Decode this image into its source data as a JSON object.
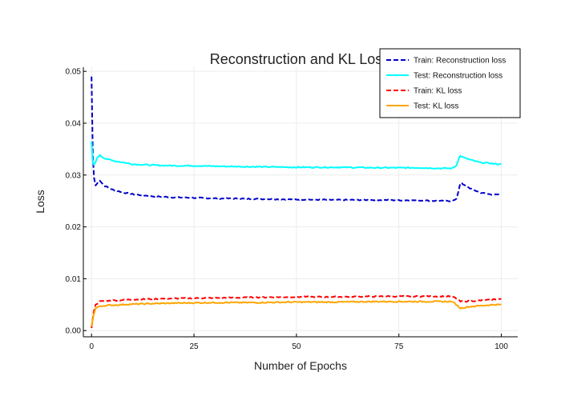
{
  "chart_data": {
    "type": "line",
    "title": "Reconstruction and KL Loss",
    "xlabel": "Number of Epochs",
    "ylabel": "Loss",
    "xlim": [
      -2,
      104
    ],
    "ylim": [
      -0.0012,
      0.0508
    ],
    "xticks": [
      0,
      25,
      50,
      75,
      100
    ],
    "xtick_labels": [
      "0",
      "25",
      "50",
      "75",
      "100"
    ],
    "yticks": [
      0,
      0.01,
      0.02,
      0.03,
      0.04,
      0.05
    ],
    "ytick_labels": [
      "0.00",
      "0.01",
      "0.02",
      "0.03",
      "0.04",
      "0.05"
    ],
    "grid": true,
    "legend_position": "top-right",
    "series": [
      {
        "name": "Train: Reconstruction loss",
        "color": "#0000cc",
        "dash": "dash",
        "x": [
          0,
          0.3,
          0.6,
          1,
          2,
          3,
          5,
          8,
          10,
          15,
          20,
          25,
          30,
          40,
          50,
          60,
          70,
          80,
          85,
          88,
          89,
          89.5,
          90,
          91,
          93,
          95,
          97,
          99,
          100
        ],
        "y": [
          0.049,
          0.034,
          0.0295,
          0.028,
          0.029,
          0.028,
          0.0272,
          0.0266,
          0.0263,
          0.0259,
          0.0257,
          0.0256,
          0.0255,
          0.0254,
          0.0253,
          0.0252,
          0.0252,
          0.0251,
          0.025,
          0.025,
          0.0253,
          0.0268,
          0.0285,
          0.028,
          0.0272,
          0.0266,
          0.0263,
          0.0262,
          0.0261
        ]
      },
      {
        "name": "Test: Reconstruction loss",
        "color": "#00ffff",
        "dash": "solid",
        "x": [
          0,
          0.3,
          0.6,
          1,
          1.5,
          2,
          3,
          5,
          8,
          10,
          15,
          20,
          25,
          30,
          40,
          50,
          60,
          70,
          80,
          85,
          88,
          89,
          89.5,
          90,
          91,
          93,
          95,
          97,
          99,
          100
        ],
        "y": [
          0.0365,
          0.0325,
          0.032,
          0.0325,
          0.0335,
          0.0338,
          0.0333,
          0.0328,
          0.0324,
          0.0321,
          0.0319,
          0.0318,
          0.0318,
          0.0317,
          0.0316,
          0.0315,
          0.0315,
          0.0314,
          0.0314,
          0.0313,
          0.0313,
          0.0318,
          0.033,
          0.0337,
          0.0333,
          0.0328,
          0.0324,
          0.0323,
          0.0321,
          0.0321
        ]
      },
      {
        "name": "Train: KL loss",
        "color": "#ff0000",
        "dash": "dash",
        "x": [
          0,
          0.5,
          1,
          2,
          3,
          5,
          10,
          20,
          30,
          40,
          50,
          60,
          70,
          80,
          85,
          88,
          89,
          90,
          92,
          95,
          98,
          100
        ],
        "y": [
          0.0005,
          0.0035,
          0.005,
          0.0056,
          0.0057,
          0.0058,
          0.006,
          0.0062,
          0.0063,
          0.0064,
          0.0065,
          0.0065,
          0.0066,
          0.0066,
          0.0066,
          0.0066,
          0.0062,
          0.0056,
          0.0057,
          0.0058,
          0.006,
          0.0061
        ]
      },
      {
        "name": "Test: KL loss",
        "color": "#ffa500",
        "dash": "solid",
        "x": [
          0,
          0.5,
          1,
          2,
          3,
          5,
          10,
          20,
          30,
          40,
          50,
          60,
          70,
          80,
          85,
          88,
          89,
          90,
          92,
          95,
          98,
          100
        ],
        "y": [
          0.0008,
          0.003,
          0.0043,
          0.0047,
          0.0048,
          0.0049,
          0.0051,
          0.0053,
          0.0054,
          0.0054,
          0.0055,
          0.0055,
          0.0056,
          0.0056,
          0.0056,
          0.0056,
          0.005,
          0.0043,
          0.0046,
          0.0048,
          0.005,
          0.005
        ]
      }
    ]
  }
}
